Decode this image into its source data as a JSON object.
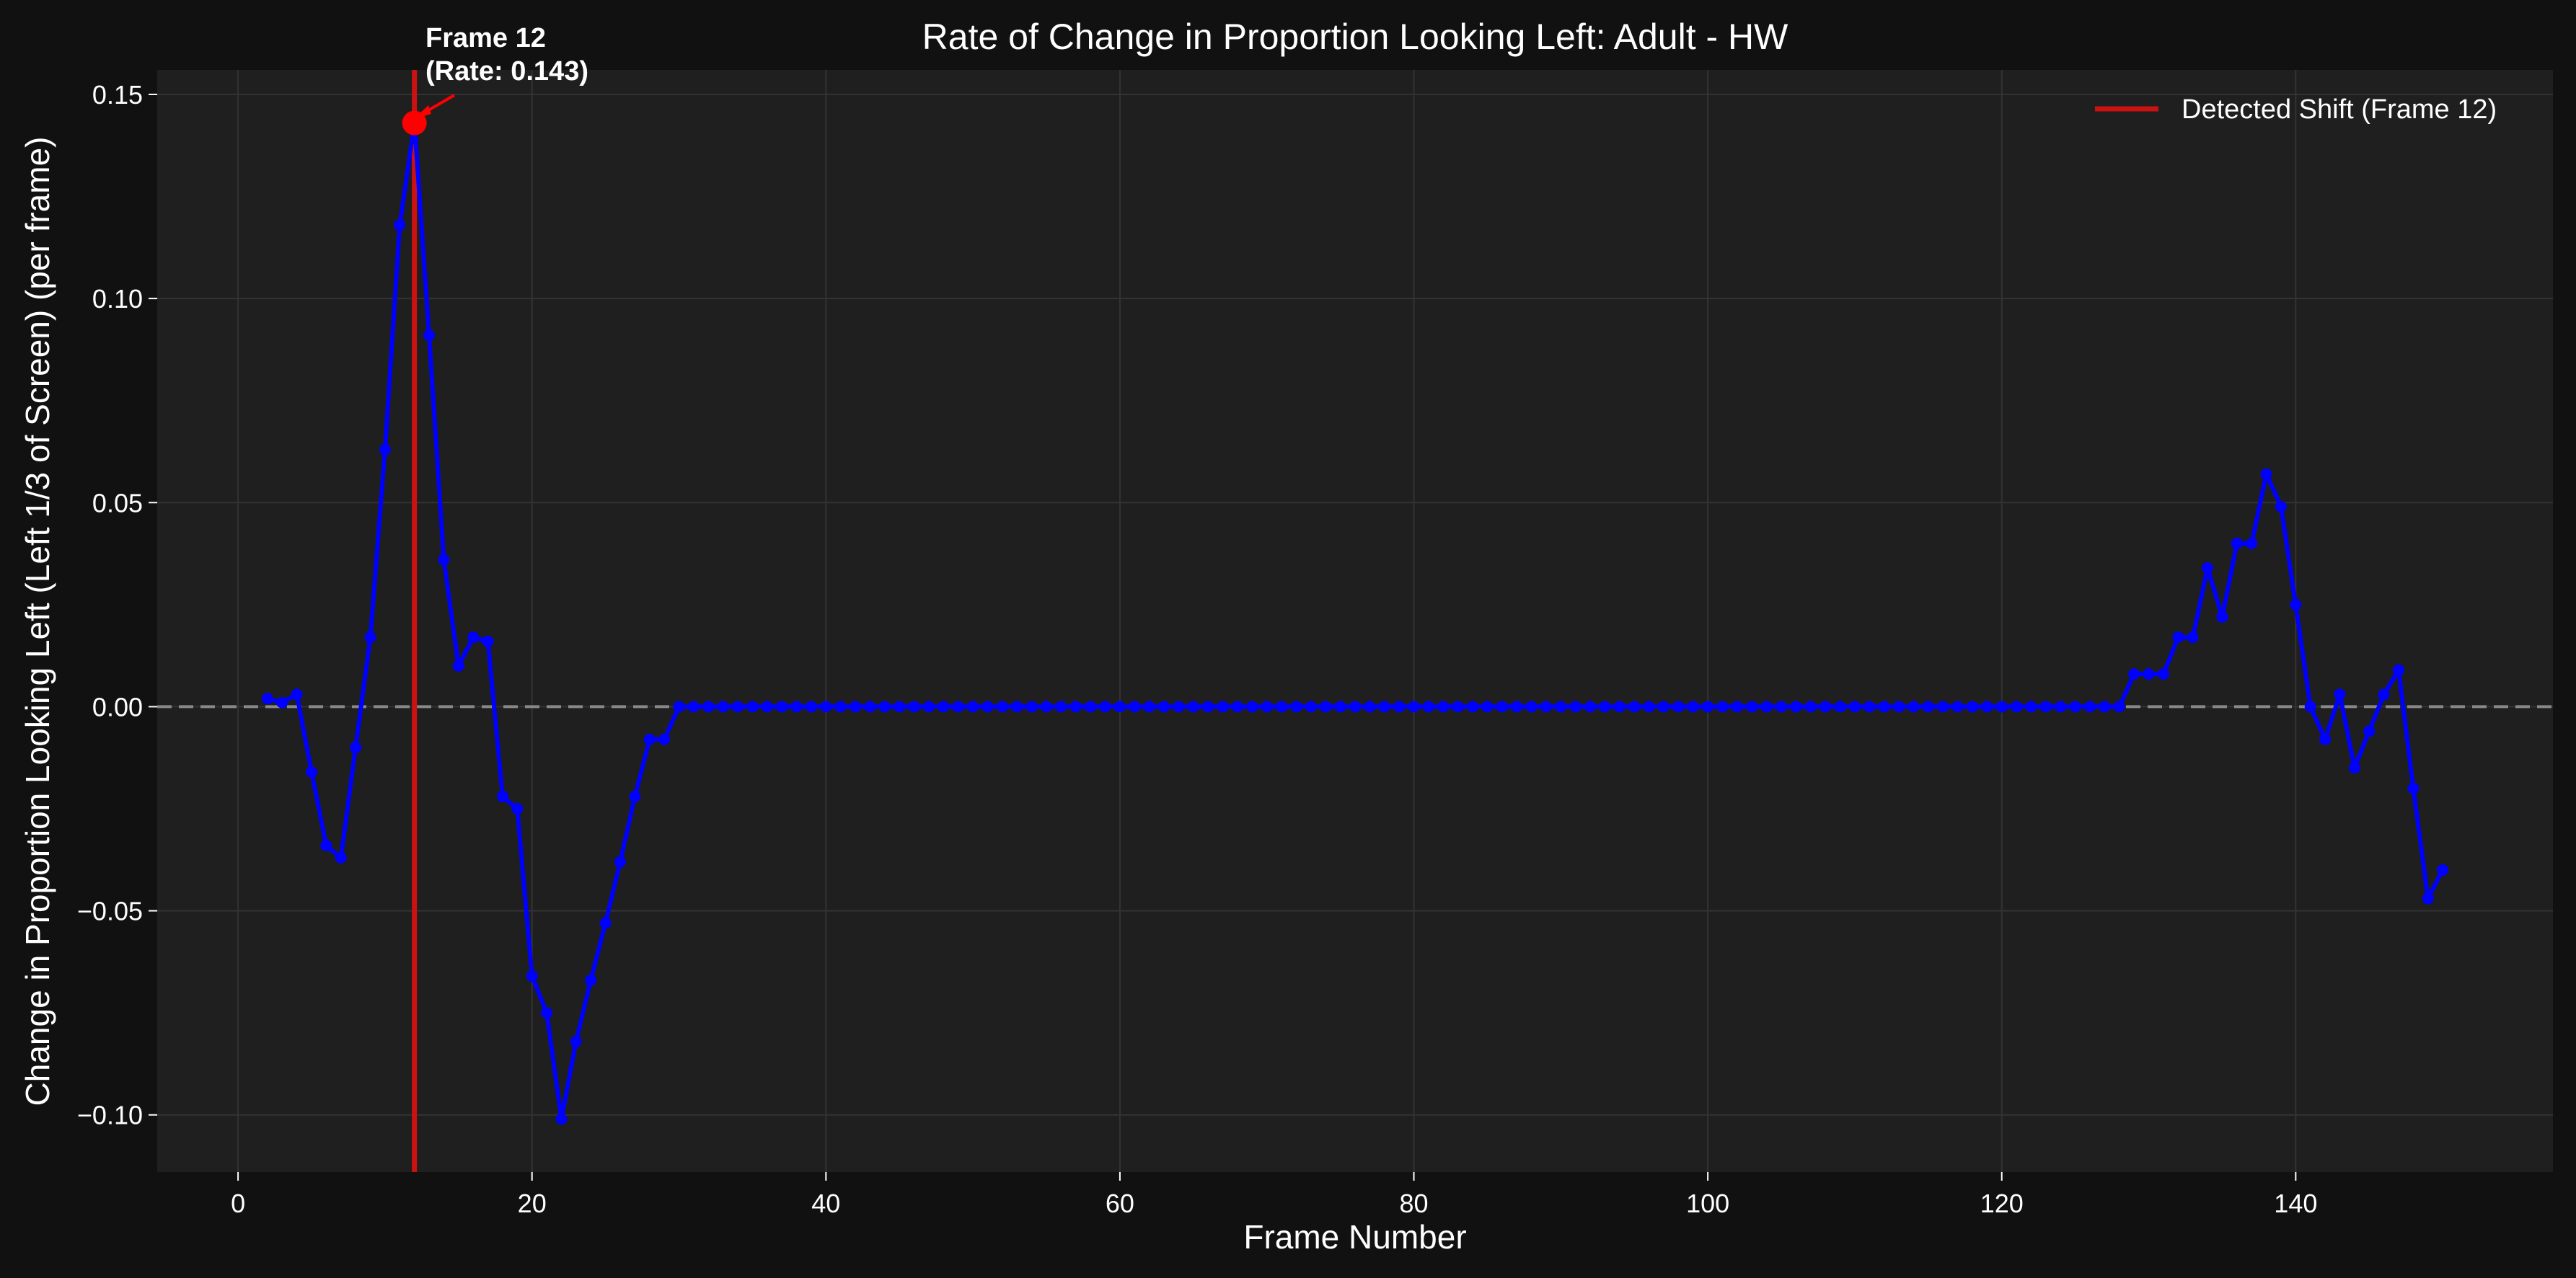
{
  "chart_data": {
    "type": "line",
    "title": "Rate of Change in Proportion Looking Left: Adult - HW",
    "xlabel": "Frame Number",
    "ylabel": "Change in Proportion Looking Left (Left 1/3 of Screen) (per frame)",
    "xlim": [
      -5.5,
      157.5
    ],
    "ylim": [
      -0.114,
      0.156
    ],
    "xticks": [
      0,
      20,
      40,
      60,
      80,
      100,
      120,
      140
    ],
    "xtick_labels": [
      "0",
      "20",
      "40",
      "60",
      "80",
      "100",
      "120",
      "140"
    ],
    "yticks": [
      -0.1,
      -0.05,
      0.0,
      0.05,
      0.1,
      0.15
    ],
    "ytick_labels": [
      "−0.10",
      "−0.05",
      "0.00",
      "0.05",
      "0.10",
      "0.15"
    ],
    "grid": true,
    "legend_position": "top-right",
    "zero_line": {
      "y": 0,
      "style": "dashed",
      "color": "#888888"
    },
    "series": [
      {
        "name": "",
        "color": "#0000ff",
        "x": [
          2,
          3,
          4,
          5,
          6,
          7,
          8,
          9,
          10,
          11,
          12,
          13,
          14,
          15,
          16,
          17,
          18,
          19,
          20,
          21,
          22,
          23,
          24,
          25,
          26,
          27,
          28,
          29,
          30,
          31,
          32,
          33,
          34,
          35,
          36,
          37,
          38,
          39,
          40,
          41,
          42,
          43,
          44,
          45,
          46,
          47,
          48,
          49,
          50,
          51,
          52,
          53,
          54,
          55,
          56,
          57,
          58,
          59,
          60,
          61,
          62,
          63,
          64,
          65,
          66,
          67,
          68,
          69,
          70,
          71,
          72,
          73,
          74,
          75,
          76,
          77,
          78,
          79,
          80,
          81,
          82,
          83,
          84,
          85,
          86,
          87,
          88,
          89,
          90,
          91,
          92,
          93,
          94,
          95,
          96,
          97,
          98,
          99,
          100,
          101,
          102,
          103,
          104,
          105,
          106,
          107,
          108,
          109,
          110,
          111,
          112,
          113,
          114,
          115,
          116,
          117,
          118,
          119,
          120,
          121,
          122,
          123,
          124,
          125,
          126,
          127,
          128,
          129,
          130,
          131,
          132,
          133,
          134,
          135,
          136,
          137,
          138,
          139,
          140,
          141,
          142,
          143,
          144,
          145,
          146,
          147,
          148,
          149,
          150
        ],
        "y": [
          0.002,
          0.001,
          0.003,
          -0.016,
          -0.034,
          -0.037,
          -0.01,
          0.017,
          0.063,
          0.118,
          0.143,
          0.091,
          0.036,
          0.01,
          0.017,
          0.016,
          -0.022,
          -0.025,
          -0.066,
          -0.075,
          -0.101,
          -0.082,
          -0.067,
          -0.053,
          -0.038,
          -0.022,
          -0.008,
          -0.008,
          0.0,
          0.0,
          0.0,
          0.0,
          0.0,
          0.0,
          0.0,
          0.0,
          0.0,
          0.0,
          0.0,
          0.0,
          0.0,
          0.0,
          0.0,
          0.0,
          0.0,
          0.0,
          0.0,
          0.0,
          0.0,
          0.0,
          0.0,
          0.0,
          0.0,
          0.0,
          0.0,
          0.0,
          0.0,
          0.0,
          0.0,
          0.0,
          0.0,
          0.0,
          0.0,
          0.0,
          0.0,
          0.0,
          0.0,
          0.0,
          0.0,
          0.0,
          0.0,
          0.0,
          0.0,
          0.0,
          0.0,
          0.0,
          0.0,
          0.0,
          0.0,
          0.0,
          0.0,
          0.0,
          0.0,
          0.0,
          0.0,
          0.0,
          0.0,
          0.0,
          0.0,
          0.0,
          0.0,
          0.0,
          0.0,
          0.0,
          0.0,
          0.0,
          0.0,
          0.0,
          0.0,
          0.0,
          0.0,
          0.0,
          0.0,
          0.0,
          0.0,
          0.0,
          0.0,
          0.0,
          0.0,
          0.0,
          0.0,
          0.0,
          0.0,
          0.0,
          0.0,
          0.0,
          0.0,
          0.0,
          0.0,
          0.0,
          0.0,
          0.0,
          0.0,
          0.0,
          0.0,
          0.0,
          0.0,
          0.008,
          0.008,
          0.008,
          0.017,
          0.017,
          0.034,
          0.022,
          0.04,
          0.04,
          0.057,
          0.049,
          0.025,
          0.0,
          -0.008,
          0.003,
          -0.015,
          -0.006,
          0.003,
          0.009,
          -0.02,
          -0.047,
          -0.04
        ]
      }
    ],
    "vline": {
      "x": 12,
      "color": "#cc1111",
      "legend_label": "Detected Shift (Frame 12)"
    },
    "highlight_point": {
      "x": 12,
      "y": 0.143,
      "color": "#ff0000"
    },
    "annotation": {
      "lines": [
        "Frame 12",
        "(Rate: 0.143)"
      ],
      "x": 12,
      "y": 0.143
    }
  },
  "colors": {
    "figure_bg": "#111111",
    "axes_bg": "#1f1f1f",
    "grid": "#333333",
    "text": "#ffffff"
  }
}
